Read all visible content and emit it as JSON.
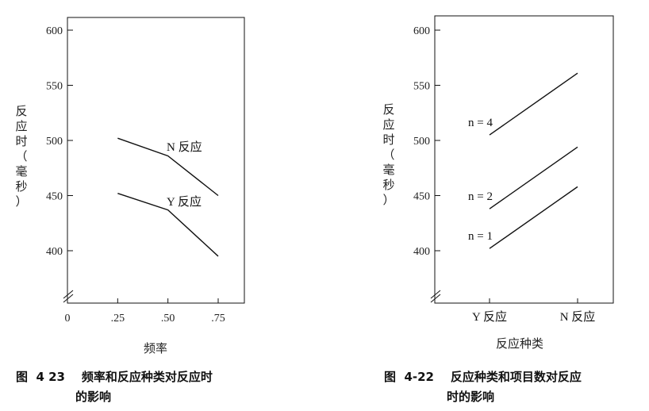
{
  "chart_data": [
    {
      "type": "line",
      "xlabel": "频率",
      "ylabel": [
        "反",
        "应",
        "时",
        "（",
        "毫",
        "秒",
        "）"
      ],
      "x_ticks": [
        "0",
        ".25",
        ".50",
        ".75"
      ],
      "x_values": [
        0,
        0.25,
        0.5,
        0.75
      ],
      "y_ticks": [
        "400",
        "450",
        "500",
        "550",
        "600"
      ],
      "xlim": [
        0,
        0.85
      ],
      "ylim": [
        360,
        615
      ],
      "axis_break": true,
      "series": [
        {
          "name": "N 反应",
          "x": [
            0.25,
            0.5,
            0.75
          ],
          "values": [
            502,
            486,
            450
          ]
        },
        {
          "name": "Y 反应",
          "x": [
            0.25,
            0.5,
            0.75
          ],
          "values": [
            452,
            437,
            395
          ]
        }
      ],
      "caption": [
        "图  4 23    频率和反应种类对反应时",
        "的影响"
      ]
    },
    {
      "type": "line",
      "xlabel": "反应种类",
      "ylabel": [
        "反",
        "应",
        "时",
        "（",
        "毫",
        "秒",
        "）"
      ],
      "categories": [
        "Y 反应",
        "N 反应"
      ],
      "y_ticks": [
        "400",
        "450",
        "500",
        "550",
        "600"
      ],
      "ylim": [
        360,
        615
      ],
      "axis_break": true,
      "series": [
        {
          "name": "n = 4",
          "values": [
            505,
            561
          ]
        },
        {
          "name": "n = 2",
          "values": [
            438,
            494
          ]
        },
        {
          "name": "n = 1",
          "values": [
            402,
            458
          ]
        }
      ],
      "caption": [
        "图  4-22    反应种类和项目数对反应",
        "时的影响"
      ]
    }
  ]
}
